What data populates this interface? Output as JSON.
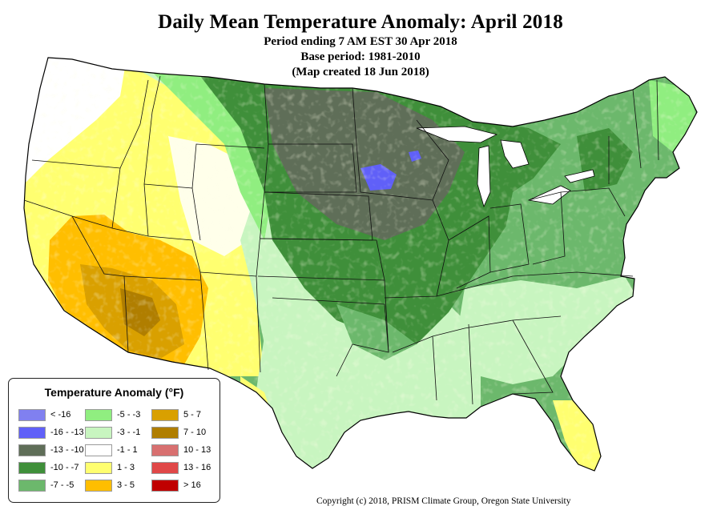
{
  "title": "Daily Mean Temperature Anomaly: April 2018",
  "subtitle_1": "Period ending 7 AM EST 30 Apr 2018",
  "subtitle_2": "Base period: 1981-2010",
  "subtitle_3": "(Map created 18 Jun 2018)",
  "legend": {
    "title": "Temperature Anomaly (°F)",
    "items": [
      {
        "label": "< -16",
        "color": "#8080f0"
      },
      {
        "label": "-16 - -13",
        "color": "#6060f8"
      },
      {
        "label": "-13 - -10",
        "color": "#5f6e58"
      },
      {
        "label": "-10 - -7",
        "color": "#3f8f3a"
      },
      {
        "label": "-7 - -5",
        "color": "#6cb86c"
      },
      {
        "label": "-5 - -3",
        "color": "#90ee80"
      },
      {
        "label": "-3 - -1",
        "color": "#c8f5c0"
      },
      {
        "label": "-1 - 1",
        "color": "#ffffff"
      },
      {
        "label": "1 - 3",
        "color": "#ffff70"
      },
      {
        "label": "3 - 5",
        "color": "#ffbe00"
      },
      {
        "label": "5 - 7",
        "color": "#d9a000"
      },
      {
        "label": "7 - 10",
        "color": "#b07e00"
      },
      {
        "label": "10 - 13",
        "color": "#d87070"
      },
      {
        "label": "13 - 16",
        "color": "#e04848"
      },
      {
        "label": "> 16",
        "color": "#c00000"
      }
    ]
  },
  "copyright": "Copyright (c) 2018, PRISM Climate Group, Oregon State University"
}
